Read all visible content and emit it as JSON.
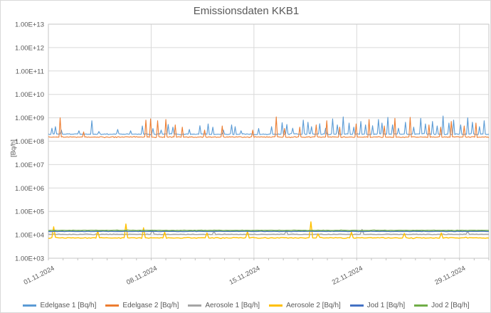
{
  "title": "Emissionsdaten KKB1",
  "y_axis": {
    "label": "[Bq/h]",
    "tick_labels": [
      "1.00E+13",
      "1.00E+12",
      "1.00E+11",
      "1.00E+10",
      "1.00E+09",
      "1.00E+08",
      "1.00E+07",
      "1.00E+06",
      "1.00E+05",
      "1.00E+04",
      "1.00E+03"
    ]
  },
  "x_axis": {
    "tick_labels": [
      "01.11.2024",
      "08.11.2024",
      "15.11.2024",
      "22.11.2024",
      "29.11.2024"
    ],
    "tick_days": [
      0,
      7,
      14,
      21,
      28
    ],
    "minor_tick_every_days": 1,
    "span_days": 30
  },
  "style_colors": {
    "text": "#595959",
    "gridline": "#d9d9d9",
    "axis_line": "#bfbfbf",
    "plot_border": "#c6c6c6"
  },
  "chart_data": {
    "type": "line",
    "title": "Emissionsdaten KKB1",
    "ylabel": "[Bq/h]",
    "y_scale": "log10",
    "ylim": [
      1000.0,
      10000000000000.0
    ],
    "x_range": [
      "01.11.2024",
      "01.12.2024"
    ],
    "span_days": 30,
    "grid": true,
    "legend_position": "bottom",
    "series": [
      {
        "name": "Edelgase 1 [Bq/h]",
        "color": "#5B9BD5",
        "baseline": 200000000.0,
        "noise": 0.045,
        "sample_step_days": 0.08,
        "spikes": [
          [
            0.25,
            360000000.0
          ],
          [
            0.5,
            420000000.0
          ],
          [
            0.9,
            300000000.0
          ],
          [
            2.1,
            280000000.0
          ],
          [
            2.95,
            750000000.0
          ],
          [
            3.4,
            260000000.0
          ],
          [
            4.7,
            320000000.0
          ],
          [
            5.6,
            280000000.0
          ],
          [
            6.4,
            450000000.0
          ],
          [
            7.1,
            350000000.0
          ],
          [
            7.7,
            300000000.0
          ],
          [
            8.15,
            520000000.0
          ],
          [
            8.5,
            400000000.0
          ],
          [
            9.6,
            320000000.0
          ],
          [
            10.3,
            460000000.0
          ],
          [
            10.9,
            550000000.0
          ],
          [
            11.2,
            400000000.0
          ],
          [
            11.9,
            300000000.0
          ],
          [
            12.5,
            500000000.0
          ],
          [
            12.7,
            420000000.0
          ],
          [
            13.1,
            280000000.0
          ],
          [
            14.3,
            350000000.0
          ],
          [
            15.2,
            420000000.0
          ],
          [
            15.9,
            620000000.0
          ],
          [
            16.25,
            520000000.0
          ],
          [
            16.6,
            360000000.0
          ],
          [
            17.35,
            800000000.0
          ],
          [
            17.65,
            650000000.0
          ],
          [
            17.95,
            420000000.0
          ],
          [
            18.5,
            560000000.0
          ],
          [
            18.9,
            360000000.0
          ],
          [
            19.35,
            900000000.0
          ],
          [
            19.65,
            500000000.0
          ],
          [
            20.1,
            1100000000.0
          ],
          [
            20.45,
            600000000.0
          ],
          [
            20.8,
            400000000.0
          ],
          [
            21.3,
            700000000.0
          ],
          [
            21.6,
            500000000.0
          ],
          [
            22.05,
            460000000.0
          ],
          [
            22.45,
            850000000.0
          ],
          [
            22.75,
            600000000.0
          ],
          [
            23.15,
            1050000000.0
          ],
          [
            23.45,
            500000000.0
          ],
          [
            23.85,
            360000000.0
          ],
          [
            24.35,
            650000000.0
          ],
          [
            24.9,
            400000000.0
          ],
          [
            25.35,
            950000000.0
          ],
          [
            25.65,
            550000000.0
          ],
          [
            26.15,
            700000000.0
          ],
          [
            26.45,
            450000000.0
          ],
          [
            26.9,
            1200000000.0
          ],
          [
            27.25,
            600000000.0
          ],
          [
            27.6,
            800000000.0
          ],
          [
            28.1,
            500000000.0
          ],
          [
            28.55,
            1000000000.0
          ],
          [
            28.9,
            650000000.0
          ],
          [
            29.35,
            420000000.0
          ],
          [
            29.65,
            750000000.0
          ]
        ]
      },
      {
        "name": "Edelgase 2 [Bq/h]",
        "color": "#ED7D31",
        "baseline": 150000000.0,
        "noise": 0.04,
        "sample_step_days": 0.08,
        "spikes": [
          [
            0.8,
            1000000000.0
          ],
          [
            2.4,
            250000000.0
          ],
          [
            6.65,
            800000000.0
          ],
          [
            6.95,
            900000000.0
          ],
          [
            7.45,
            750000000.0
          ],
          [
            8.0,
            850000000.0
          ],
          [
            8.65,
            500000000.0
          ],
          [
            9.15,
            400000000.0
          ],
          [
            10.6,
            300000000.0
          ],
          [
            11.8,
            450000000.0
          ],
          [
            13.9,
            300000000.0
          ],
          [
            15.5,
            1100000000.0
          ],
          [
            16.1,
            350000000.0
          ],
          [
            17.15,
            400000000.0
          ],
          [
            18.25,
            500000000.0
          ],
          [
            18.95,
            750000000.0
          ],
          [
            19.85,
            400000000.0
          ],
          [
            20.95,
            550000000.0
          ],
          [
            21.85,
            850000000.0
          ],
          [
            22.9,
            450000000.0
          ],
          [
            23.6,
            950000000.0
          ],
          [
            24.6,
            1050000000.0
          ],
          [
            25.95,
            500000000.0
          ],
          [
            26.7,
            400000000.0
          ],
          [
            27.45,
            700000000.0
          ],
          [
            28.35,
            450000000.0
          ],
          [
            29.15,
            600000000.0
          ]
        ]
      },
      {
        "name": "Aerosole 1 [Bq/h]",
        "color": "#A5A5A5",
        "baseline": 10500.0,
        "noise": 0.03,
        "sample_step_days": 0.12,
        "spikes": [
          [
            7.1,
            16000.0
          ],
          [
            11.3,
            14000.0
          ],
          [
            16.2,
            15000.0
          ],
          [
            21.4,
            17000.0
          ],
          [
            28.6,
            14000.0
          ]
        ]
      },
      {
        "name": "Aerosole 2 [Bq/h]",
        "color": "#FFC000",
        "baseline": 7400.0,
        "noise": 0.045,
        "sample_step_days": 0.12,
        "spikes": [
          [
            0.4,
            22000.0
          ],
          [
            3.3,
            15000.0
          ],
          [
            5.25,
            29000.0
          ],
          [
            6.45,
            20000.0
          ],
          [
            7.9,
            13000.0
          ],
          [
            10.8,
            12000.0
          ],
          [
            13.6,
            14000.0
          ],
          [
            17.9,
            36000.0
          ],
          [
            18.4,
            11000.0
          ],
          [
            20.6,
            13000.0
          ],
          [
            24.2,
            11500.0
          ],
          [
            26.8,
            12000.0
          ]
        ]
      },
      {
        "name": "Jod 1 [Bq/h]",
        "color": "#4472C4",
        "baseline": 14000.0,
        "noise": 0.02,
        "sample_step_days": 0.12,
        "spikes": []
      },
      {
        "name": "Jod 2 [Bq/h]",
        "color": "#70AD47",
        "baseline": 15500.0,
        "noise": 0.018,
        "sample_step_days": 0.12,
        "spikes": []
      }
    ]
  }
}
